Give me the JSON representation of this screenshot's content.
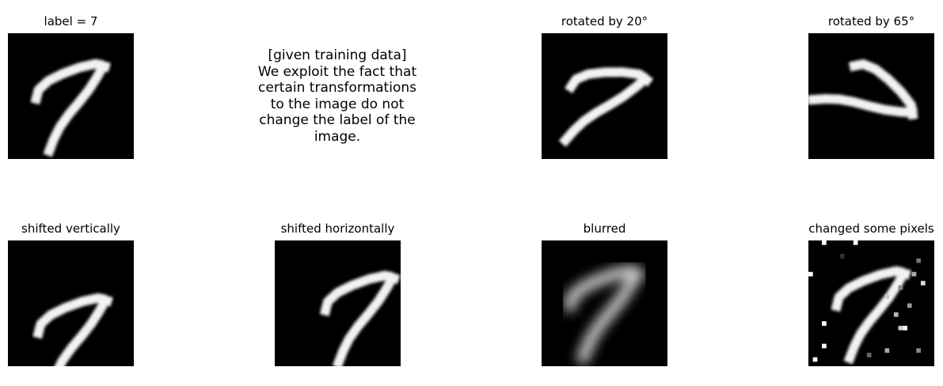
{
  "panels": [
    {
      "title": "label = 7",
      "variant": "original"
    },
    {
      "title": "rotated by 20°",
      "variant": "rotated-20"
    },
    {
      "title": "rotated by 65°",
      "variant": "rotated-65"
    },
    {
      "title": "shifted vertically",
      "variant": "shifted-vertical"
    },
    {
      "title": "shifted horizontally",
      "variant": "shifted-horizontal"
    },
    {
      "title": "blurred",
      "variant": "blurred"
    },
    {
      "title": "changed some pixels",
      "variant": "noisy"
    }
  ],
  "caption": {
    "lines": [
      "[given training data]",
      "We exploit the fact that",
      "certain transformations",
      "to the image do not",
      "change the label of the",
      "image."
    ]
  },
  "colors": {
    "background": "#ffffff",
    "image_background": "#000000",
    "stroke": "#f2f2f2"
  }
}
